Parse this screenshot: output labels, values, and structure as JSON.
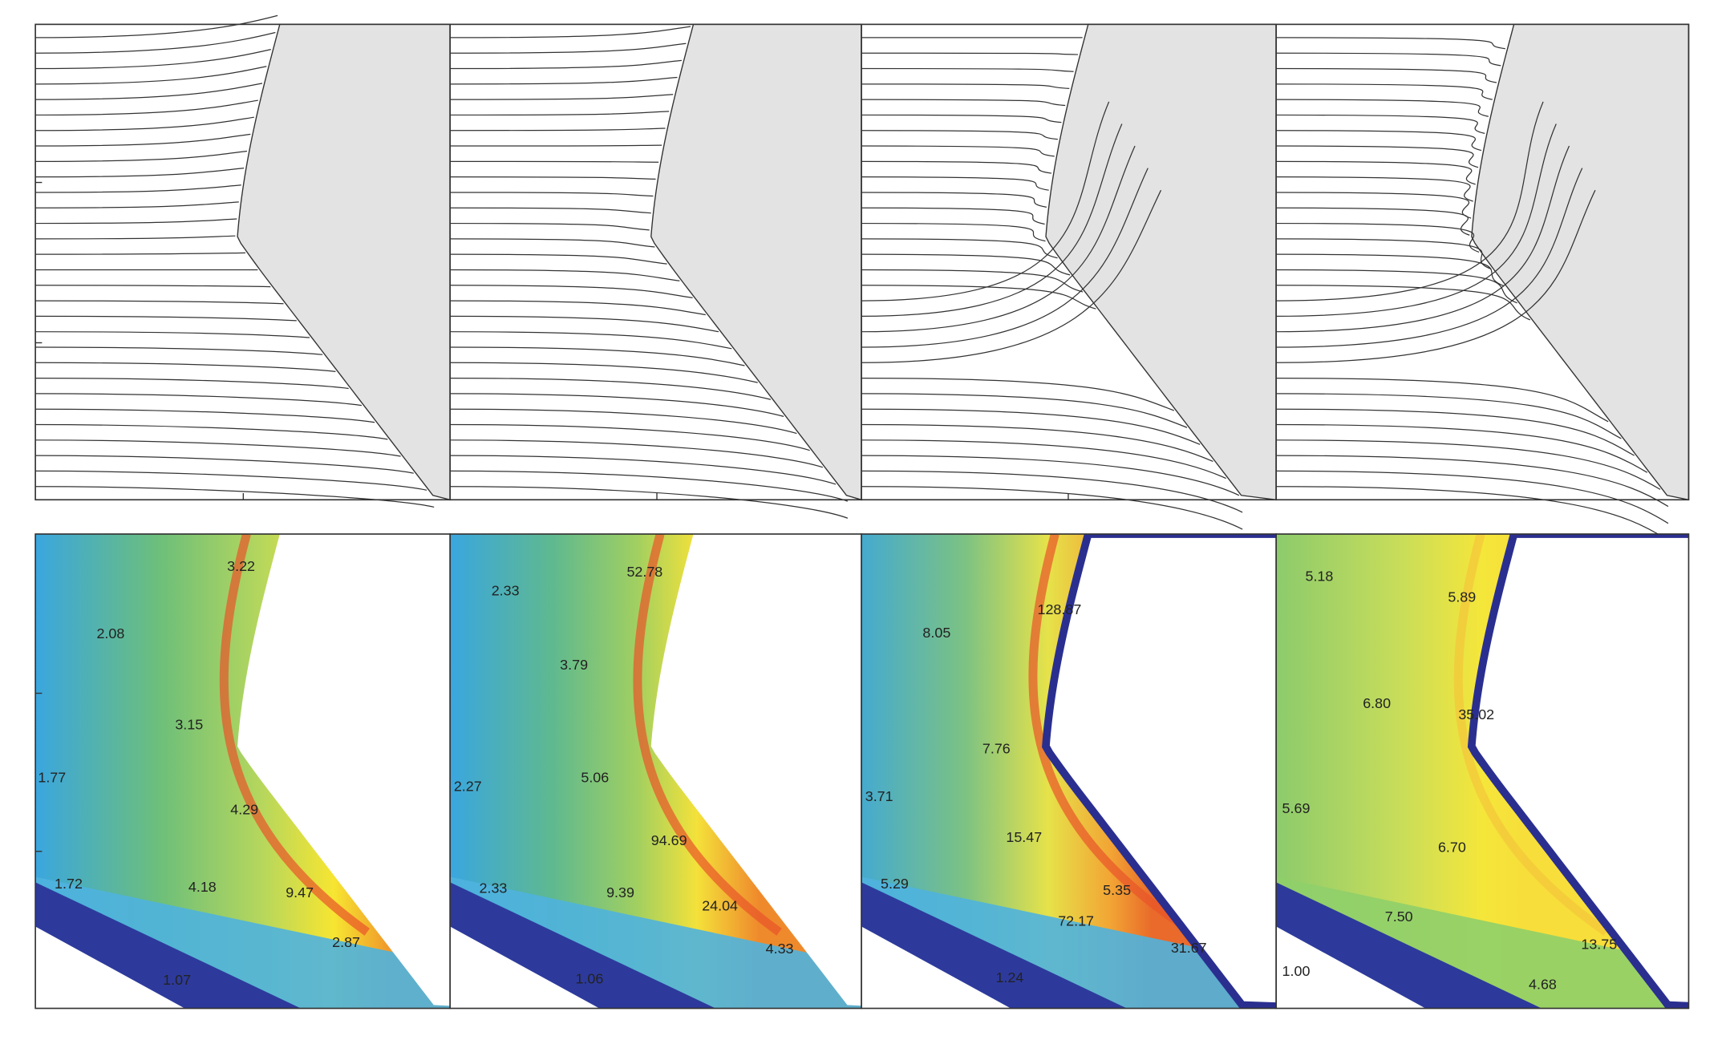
{
  "panels": [
    {
      "contour_labels": [
        "3.22",
        "2.08",
        "3.15",
        "1.77",
        "4.29",
        "1.72",
        "4.18",
        "9.47",
        "2.87",
        "1.07"
      ]
    },
    {
      "contour_labels": [
        "2.33",
        "52.78",
        "3.79",
        "2.27",
        "5.06",
        "94.69",
        "2.33",
        "9.39",
        "24.04",
        "4.33",
        "1.06"
      ]
    },
    {
      "contour_labels": [
        "8.05",
        "128.87",
        "7.76",
        "3.71",
        "15.47",
        "5.29",
        "5.35",
        "72.17",
        "31.67",
        "1.24"
      ]
    },
    {
      "contour_labels": [
        "5.18",
        "5.89",
        "6.80",
        "35.02",
        "5.69",
        "6.70",
        "7.50",
        "13.75",
        "4.68",
        "1.00"
      ]
    }
  ]
}
